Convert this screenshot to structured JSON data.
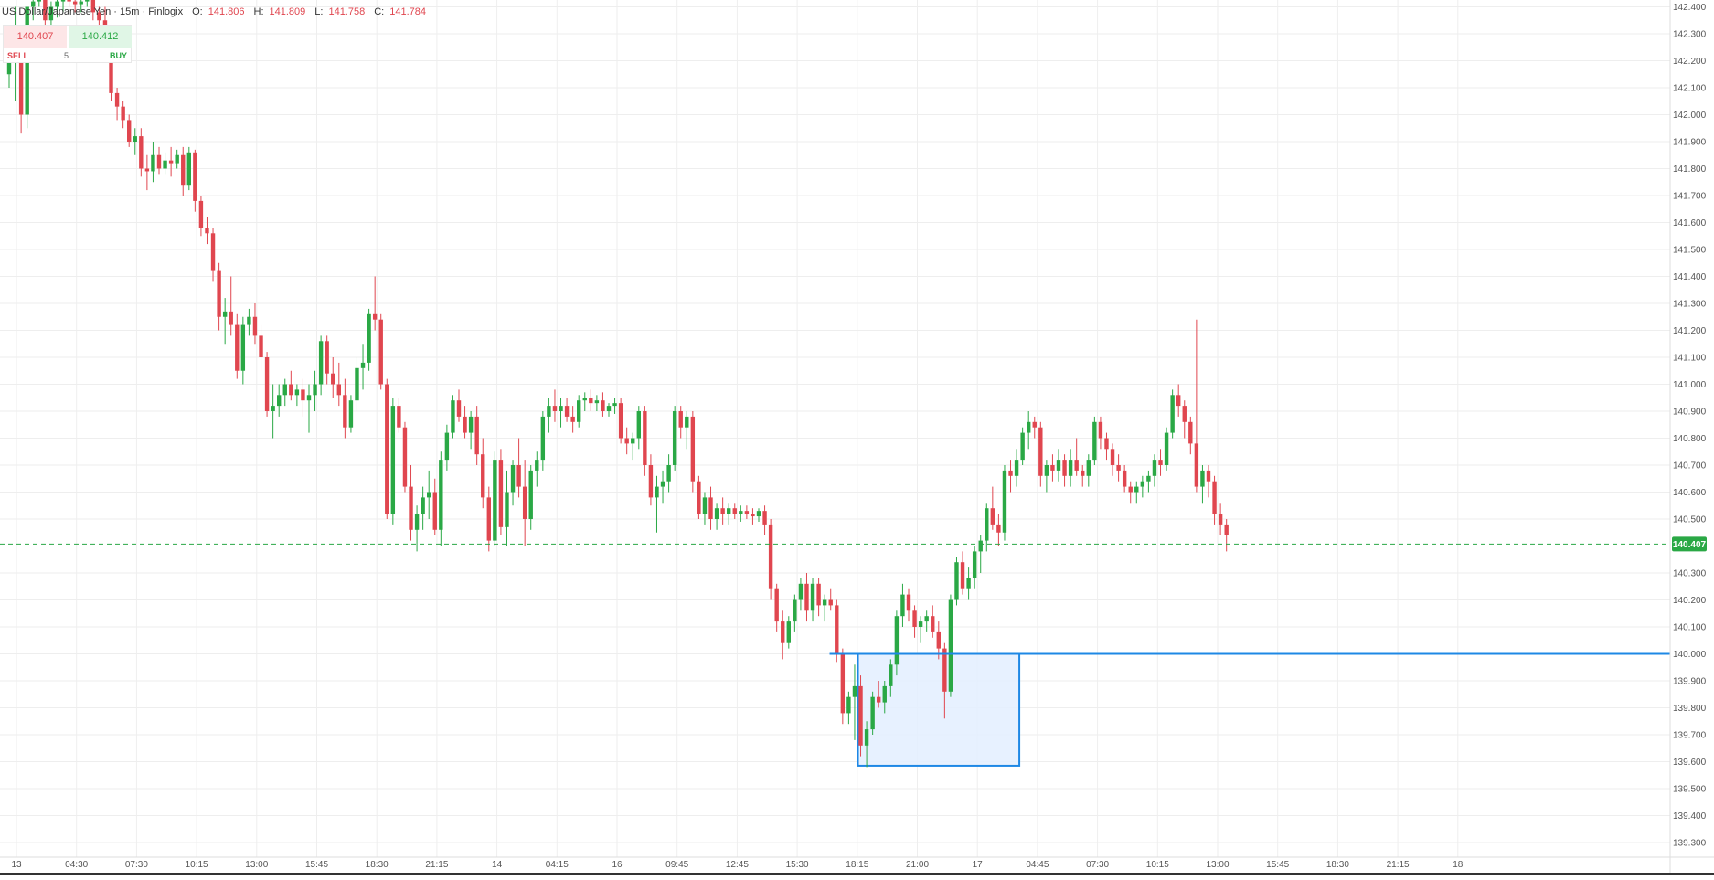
{
  "header": {
    "symbol": "US Dollar/Japanese Yen · 15m · Finlogix",
    "o_label": "O:",
    "o_value": "141.806",
    "h_label": "H:",
    "h_value": "141.809",
    "l_label": "L:",
    "l_value": "141.758",
    "c_label": "C:",
    "c_value": "141.784"
  },
  "order_widget": {
    "sell_price": "140.407",
    "buy_price": "140.412",
    "sell_label": "SELL",
    "quantity": "5",
    "buy_label": "BUY"
  },
  "colors": {
    "up": "#2aa845",
    "down": "#e0464f",
    "grid": "#eeeeee",
    "price_line": "#2aa845",
    "level_line": "#1e88e5",
    "zone_fill": "#e3efff",
    "zone_border": "#1e88e5"
  },
  "chart_data": {
    "type": "candlestick",
    "ylim": [
      139.25,
      142.47
    ],
    "y_ticks": [
      "142.400",
      "142.300",
      "142.200",
      "142.100",
      "142.000",
      "141.900",
      "141.800",
      "141.700",
      "141.600",
      "141.500",
      "141.400",
      "141.300",
      "141.200",
      "141.100",
      "141.000",
      "140.900",
      "140.800",
      "140.700",
      "140.600",
      "140.500",
      "140.400",
      "140.300",
      "140.200",
      "140.100",
      "140.000",
      "139.900",
      "139.800",
      "139.700",
      "139.600",
      "139.500",
      "139.400",
      "139.300"
    ],
    "x_ticks": [
      "13",
      "04:30",
      "07:30",
      "10:15",
      "13:00",
      "15:45",
      "18:30",
      "21:15",
      "14",
      "04:15",
      "16",
      "09:45",
      "12:45",
      "15:30",
      "18:15",
      "21:00",
      "17",
      "04:45",
      "07:30",
      "10:15",
      "13:00",
      "15:45",
      "18:30",
      "21:15",
      "18"
    ],
    "current_price": 140.407,
    "current_price_label": "140.407",
    "level": 140.0,
    "zone": {
      "y_top": 140.0,
      "y_bottom": 139.585,
      "from_candle": 142,
      "to_candle": 168
    },
    "candles": [
      [
        142.15,
        142.2,
        142.1,
        142.2
      ],
      [
        142.2,
        142.4,
        142.05,
        142.25
      ],
      [
        142.25,
        142.3,
        141.93,
        142.0
      ],
      [
        142.0,
        142.4,
        141.95,
        142.4
      ],
      [
        142.4,
        142.45,
        142.35,
        142.42
      ],
      [
        142.42,
        142.46,
        142.4,
        142.44
      ],
      [
        142.44,
        142.45,
        142.3,
        142.35
      ],
      [
        142.35,
        142.42,
        142.33,
        142.4
      ],
      [
        142.4,
        142.45,
        142.36,
        142.42
      ],
      [
        142.42,
        142.45,
        142.38,
        142.43
      ],
      [
        142.43,
        142.46,
        142.4,
        142.42
      ],
      [
        142.42,
        142.45,
        142.38,
        142.41
      ],
      [
        142.41,
        142.44,
        142.38,
        142.42
      ],
      [
        142.42,
        142.46,
        142.4,
        142.44
      ],
      [
        142.44,
        142.45,
        142.35,
        142.38
      ],
      [
        142.38,
        142.4,
        142.3,
        142.35
      ],
      [
        142.35,
        142.4,
        142.2,
        142.22
      ],
      [
        142.22,
        142.25,
        142.05,
        142.08
      ],
      [
        142.08,
        142.1,
        141.98,
        142.03
      ],
      [
        142.03,
        142.05,
        141.95,
        141.98
      ],
      [
        141.98,
        142.0,
        141.88,
        141.9
      ],
      [
        141.9,
        141.95,
        141.85,
        141.92
      ],
      [
        141.92,
        141.95,
        141.77,
        141.8
      ],
      [
        141.8,
        141.85,
        141.72,
        141.79
      ],
      [
        141.79,
        141.9,
        141.75,
        141.85
      ],
      [
        141.85,
        141.88,
        141.78,
        141.8
      ],
      [
        141.8,
        141.86,
        141.78,
        141.83
      ],
      [
        141.83,
        141.88,
        141.77,
        141.82
      ],
      [
        141.82,
        141.87,
        141.8,
        141.85
      ],
      [
        141.85,
        141.88,
        141.7,
        141.74
      ],
      [
        141.74,
        141.88,
        141.72,
        141.86
      ],
      [
        141.86,
        141.87,
        141.64,
        141.68
      ],
      [
        141.68,
        141.7,
        141.55,
        141.58
      ],
      [
        141.58,
        141.62,
        141.52,
        141.56
      ],
      [
        141.56,
        141.58,
        141.38,
        141.42
      ],
      [
        141.42,
        141.45,
        141.2,
        141.25
      ],
      [
        141.25,
        141.32,
        141.15,
        141.27
      ],
      [
        141.27,
        141.4,
        141.18,
        141.22
      ],
      [
        141.22,
        141.26,
        141.02,
        141.05
      ],
      [
        141.05,
        141.25,
        141.0,
        141.22
      ],
      [
        141.22,
        141.28,
        141.18,
        141.25
      ],
      [
        141.25,
        141.3,
        141.15,
        141.18
      ],
      [
        141.18,
        141.22,
        141.05,
        141.1
      ],
      [
        141.1,
        141.12,
        140.88,
        140.9
      ],
      [
        140.9,
        141.0,
        140.8,
        140.92
      ],
      [
        140.92,
        141.0,
        140.88,
        140.96
      ],
      [
        140.96,
        141.02,
        140.92,
        141.0
      ],
      [
        141.0,
        141.05,
        140.94,
        140.96
      ],
      [
        140.96,
        141.0,
        140.92,
        140.98
      ],
      [
        140.98,
        141.02,
        140.88,
        140.94
      ],
      [
        140.94,
        141.0,
        140.82,
        140.96
      ],
      [
        140.96,
        141.05,
        140.9,
        141.0
      ],
      [
        141.0,
        141.18,
        140.96,
        141.16
      ],
      [
        141.16,
        141.18,
        141.0,
        141.04
      ],
      [
        141.04,
        141.1,
        140.95,
        141.0
      ],
      [
        141.0,
        141.08,
        140.92,
        140.96
      ],
      [
        140.96,
        141.02,
        140.8,
        140.84
      ],
      [
        140.84,
        140.96,
        140.82,
        140.94
      ],
      [
        140.94,
        141.1,
        140.9,
        141.06
      ],
      [
        141.06,
        141.15,
        140.98,
        141.08
      ],
      [
        141.08,
        141.28,
        141.05,
        141.26
      ],
      [
        141.26,
        141.4,
        141.2,
        141.24
      ],
      [
        141.24,
        141.26,
        140.98,
        141.0
      ],
      [
        141.0,
        141.02,
        140.5,
        140.52
      ],
      [
        140.52,
        140.95,
        140.48,
        140.92
      ],
      [
        140.92,
        140.95,
        140.82,
        140.84
      ],
      [
        140.84,
        140.86,
        140.6,
        140.62
      ],
      [
        140.62,
        140.7,
        140.42,
        140.46
      ],
      [
        140.46,
        140.55,
        140.38,
        140.52
      ],
      [
        140.52,
        140.62,
        140.46,
        140.58
      ],
      [
        140.58,
        140.68,
        140.5,
        140.6
      ],
      [
        140.6,
        140.65,
        140.44,
        140.46
      ],
      [
        140.46,
        140.75,
        140.4,
        140.72
      ],
      [
        140.72,
        140.85,
        140.68,
        140.82
      ],
      [
        140.82,
        140.96,
        140.8,
        140.94
      ],
      [
        140.94,
        140.98,
        140.86,
        140.88
      ],
      [
        140.88,
        140.92,
        140.8,
        140.82
      ],
      [
        140.82,
        140.9,
        140.76,
        140.88
      ],
      [
        140.88,
        140.92,
        140.7,
        140.74
      ],
      [
        140.74,
        140.8,
        140.54,
        140.58
      ],
      [
        140.58,
        140.62,
        140.38,
        140.42
      ],
      [
        140.42,
        140.75,
        140.4,
        140.72
      ],
      [
        140.72,
        140.76,
        140.44,
        140.47
      ],
      [
        140.47,
        140.68,
        140.4,
        140.6
      ],
      [
        140.6,
        140.72,
        140.55,
        140.7
      ],
      [
        140.7,
        140.8,
        140.58,
        140.62
      ],
      [
        140.62,
        140.72,
        140.4,
        140.5
      ],
      [
        140.5,
        140.7,
        140.46,
        140.68
      ],
      [
        140.68,
        140.75,
        140.62,
        140.72
      ],
      [
        140.72,
        140.9,
        140.68,
        140.88
      ],
      [
        140.88,
        140.95,
        140.82,
        140.92
      ],
      [
        140.92,
        140.98,
        140.86,
        140.9
      ],
      [
        140.9,
        140.95,
        140.84,
        140.92
      ],
      [
        140.92,
        140.95,
        140.86,
        140.88
      ],
      [
        140.88,
        140.92,
        140.82,
        140.86
      ],
      [
        140.86,
        140.96,
        140.84,
        140.94
      ],
      [
        140.94,
        140.97,
        140.9,
        140.95
      ],
      [
        140.95,
        140.98,
        140.9,
        140.93
      ],
      [
        140.93,
        140.96,
        140.9,
        140.94
      ],
      [
        140.94,
        140.97,
        140.88,
        140.9
      ],
      [
        140.9,
        140.93,
        140.88,
        140.92
      ],
      [
        140.92,
        140.95,
        140.89,
        140.93
      ],
      [
        140.93,
        140.95,
        140.78,
        140.8
      ],
      [
        140.8,
        140.84,
        140.74,
        140.78
      ],
      [
        140.78,
        140.82,
        140.72,
        140.8
      ],
      [
        140.8,
        140.92,
        140.76,
        140.9
      ],
      [
        140.9,
        140.92,
        140.66,
        140.7
      ],
      [
        140.7,
        140.74,
        140.55,
        140.58
      ],
      [
        140.58,
        140.66,
        140.45,
        140.62
      ],
      [
        140.62,
        140.68,
        140.56,
        140.64
      ],
      [
        140.64,
        140.74,
        140.6,
        140.7
      ],
      [
        140.7,
        140.92,
        140.68,
        140.9
      ],
      [
        140.9,
        140.92,
        140.8,
        140.84
      ],
      [
        140.84,
        140.9,
        140.76,
        140.88
      ],
      [
        140.88,
        140.9,
        140.6,
        140.64
      ],
      [
        140.64,
        140.66,
        140.5,
        140.52
      ],
      [
        140.52,
        140.6,
        140.48,
        140.58
      ],
      [
        140.58,
        140.62,
        140.46,
        140.5
      ],
      [
        140.5,
        140.56,
        140.46,
        140.54
      ],
      [
        140.54,
        140.58,
        140.48,
        140.52
      ],
      [
        140.52,
        140.56,
        140.48,
        140.54
      ],
      [
        140.54,
        140.56,
        140.5,
        140.52
      ],
      [
        140.52,
        140.55,
        140.49,
        140.53
      ],
      [
        140.53,
        140.55,
        140.5,
        140.52
      ],
      [
        140.52,
        140.54,
        140.48,
        140.51
      ],
      [
        140.51,
        140.54,
        140.49,
        140.53
      ],
      [
        140.53,
        140.55,
        140.44,
        140.48
      ],
      [
        140.48,
        140.5,
        140.2,
        140.24
      ],
      [
        140.24,
        140.26,
        140.08,
        140.12
      ],
      [
        140.12,
        140.16,
        139.98,
        140.04
      ],
      [
        140.04,
        140.14,
        140.02,
        140.12
      ],
      [
        140.12,
        140.22,
        140.08,
        140.2
      ],
      [
        140.2,
        140.28,
        140.16,
        140.26
      ],
      [
        140.26,
        140.3,
        140.12,
        140.16
      ],
      [
        140.16,
        140.28,
        140.12,
        140.26
      ],
      [
        140.26,
        140.28,
        140.14,
        140.18
      ],
      [
        140.18,
        140.22,
        140.12,
        140.2
      ],
      [
        140.2,
        140.24,
        140.16,
        140.18
      ],
      [
        140.18,
        140.2,
        139.97,
        140.0
      ],
      [
        140.0,
        140.02,
        139.74,
        139.78
      ],
      [
        139.78,
        139.86,
        139.74,
        139.84
      ],
      [
        139.84,
        139.96,
        139.68,
        139.88
      ],
      [
        139.88,
        139.92,
        139.62,
        139.66
      ],
      [
        139.66,
        139.75,
        139.58,
        139.72
      ],
      [
        139.72,
        139.86,
        139.7,
        139.84
      ],
      [
        139.84,
        139.9,
        139.8,
        139.82
      ],
      [
        139.82,
        139.9,
        139.78,
        139.88
      ],
      [
        139.88,
        139.98,
        139.84,
        139.96
      ],
      [
        139.96,
        140.16,
        139.92,
        140.14
      ],
      [
        140.14,
        140.26,
        140.1,
        140.22
      ],
      [
        140.22,
        140.24,
        140.12,
        140.16
      ],
      [
        140.16,
        140.18,
        140.06,
        140.1
      ],
      [
        140.1,
        140.14,
        140.04,
        140.12
      ],
      [
        140.12,
        140.16,
        140.08,
        140.14
      ],
      [
        140.14,
        140.18,
        140.06,
        140.08
      ],
      [
        140.08,
        140.12,
        139.98,
        140.02
      ],
      [
        140.02,
        140.04,
        139.76,
        139.86
      ],
      [
        139.86,
        140.22,
        139.84,
        140.2
      ],
      [
        140.2,
        140.36,
        140.18,
        140.34
      ],
      [
        140.34,
        140.38,
        140.22,
        140.24
      ],
      [
        140.24,
        140.32,
        140.2,
        140.28
      ],
      [
        140.28,
        140.4,
        140.24,
        140.38
      ],
      [
        140.38,
        140.44,
        140.3,
        140.42
      ],
      [
        140.42,
        140.56,
        140.38,
        140.54
      ],
      [
        140.54,
        140.62,
        140.46,
        140.48
      ],
      [
        140.48,
        140.52,
        140.4,
        140.45
      ],
      [
        140.45,
        140.7,
        140.42,
        140.68
      ],
      [
        140.68,
        140.72,
        140.6,
        140.66
      ],
      [
        140.66,
        140.76,
        140.62,
        140.72
      ],
      [
        140.72,
        140.84,
        140.7,
        140.82
      ],
      [
        140.82,
        140.9,
        140.76,
        140.86
      ],
      [
        140.86,
        140.88,
        140.8,
        140.84
      ],
      [
        140.84,
        140.86,
        140.62,
        140.66
      ],
      [
        140.66,
        140.72,
        140.6,
        140.7
      ],
      [
        140.7,
        140.74,
        140.64,
        140.68
      ],
      [
        140.68,
        140.76,
        140.64,
        140.72
      ],
      [
        140.72,
        140.74,
        140.62,
        140.66
      ],
      [
        140.66,
        140.76,
        140.62,
        140.72
      ],
      [
        140.72,
        140.8,
        140.66,
        140.68
      ],
      [
        140.68,
        140.7,
        140.62,
        140.66
      ],
      [
        140.66,
        140.74,
        140.62,
        140.72
      ],
      [
        140.72,
        140.88,
        140.7,
        140.86
      ],
      [
        140.86,
        140.88,
        140.76,
        140.8
      ],
      [
        140.8,
        140.82,
        140.72,
        140.76
      ],
      [
        140.76,
        140.78,
        140.66,
        140.7
      ],
      [
        140.7,
        140.74,
        140.64,
        140.68
      ],
      [
        140.68,
        140.7,
        140.6,
        140.62
      ],
      [
        140.62,
        140.64,
        140.56,
        140.6
      ],
      [
        140.6,
        140.64,
        140.56,
        140.62
      ],
      [
        140.62,
        140.66,
        140.58,
        140.64
      ],
      [
        140.64,
        140.68,
        140.6,
        140.66
      ],
      [
        140.66,
        140.74,
        140.62,
        140.72
      ],
      [
        140.72,
        140.76,
        140.66,
        140.7
      ],
      [
        140.7,
        140.84,
        140.68,
        140.82
      ],
      [
        140.82,
        140.98,
        140.8,
        140.96
      ],
      [
        140.96,
        141.0,
        140.88,
        140.92
      ],
      [
        140.92,
        140.94,
        140.8,
        140.86
      ],
      [
        140.86,
        140.88,
        140.74,
        140.78
      ],
      [
        140.78,
        141.24,
        140.6,
        140.62
      ],
      [
        140.62,
        140.7,
        140.56,
        140.68
      ],
      [
        140.68,
        140.7,
        140.58,
        140.64
      ],
      [
        140.64,
        140.66,
        140.48,
        140.52
      ],
      [
        140.52,
        140.56,
        140.44,
        140.48
      ],
      [
        140.48,
        140.5,
        140.38,
        140.44
      ]
    ]
  }
}
